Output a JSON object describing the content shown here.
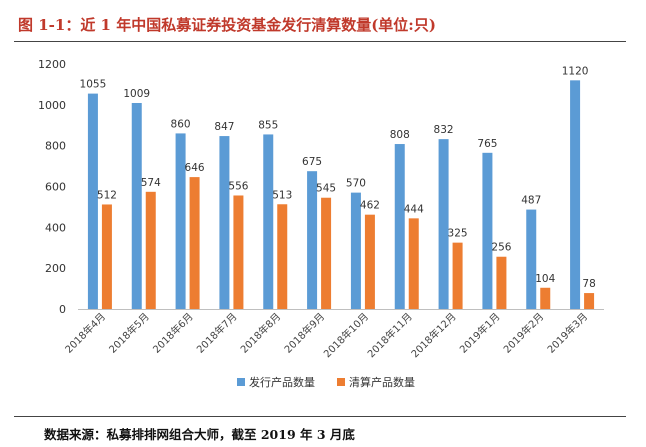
{
  "figure": {
    "title": "图 1-1：近 1 年中国私募证券投资基金发行清算数量(单位:只)",
    "source": "数据来源：私募排排网组合大师，截至 2019 年 3 月底"
  },
  "colors": {
    "series_1": "#5b9bd5",
    "series_2": "#ed7d31",
    "title": "#c0392b"
  },
  "chart_data": {
    "type": "bar",
    "categories": [
      "2018年4月",
      "2018年5月",
      "2018年6月",
      "2018年7月",
      "2018年8月",
      "2018年9月",
      "2018年10月",
      "2018年11月",
      "2018年12月",
      "2019年1月",
      "2019年2月",
      "2019年3月"
    ],
    "series": [
      {
        "name": "发行产品数量",
        "values": [
          1055,
          1009,
          860,
          847,
          855,
          675,
          570,
          808,
          832,
          765,
          487,
          1120
        ]
      },
      {
        "name": "清算产品数量",
        "values": [
          512,
          574,
          646,
          556,
          513,
          545,
          462,
          444,
          325,
          256,
          104,
          78
        ]
      }
    ],
    "yticks": [
      0,
      200,
      400,
      600,
      800,
      1000,
      1200
    ],
    "ylim": [
      0,
      1200
    ],
    "grid": false,
    "legend": "bottom-center"
  }
}
